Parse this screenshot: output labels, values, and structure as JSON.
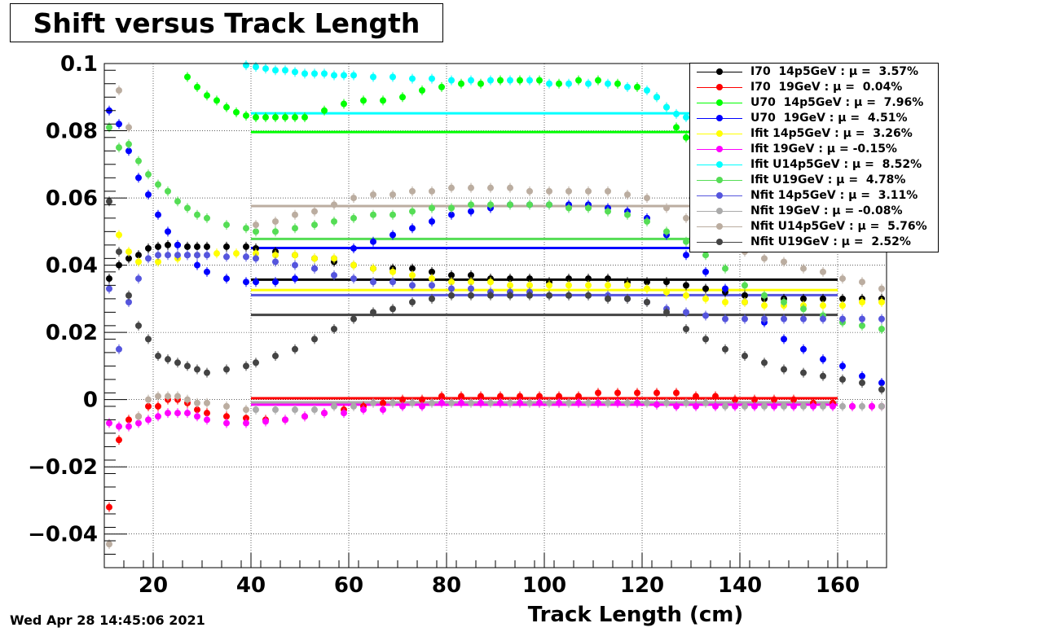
{
  "title": "Shift versus Track Length",
  "date": "Wed Apr 28 14:45:06 2021",
  "chart_data": {
    "type": "scatter",
    "title": "Shift versus Track Length",
    "xlabel": "Track Length (cm)",
    "ylabel": "",
    "xlim": [
      10,
      170
    ],
    "ylim": [
      -0.05,
      0.1
    ],
    "grid": true,
    "legend_position": "top-right",
    "x_ticks": [
      20,
      40,
      60,
      80,
      100,
      120,
      140,
      160
    ],
    "x_tick_labels": [
      "20",
      "40",
      "60",
      "80",
      "100",
      "120",
      "140",
      "160"
    ],
    "y_ticks": [
      -0.04,
      -0.02,
      0,
      0.02,
      0.04,
      0.06,
      0.08,
      0.1
    ],
    "y_tick_labels": [
      "−0.04",
      "−0.02",
      "0",
      "0.02",
      "0.04",
      "0.06",
      "0.08",
      "0.1"
    ],
    "series": [
      {
        "name": "I70  14p5GeV : μ =  3.57%",
        "color": "#000000",
        "mean": 0.0357,
        "x": [
          11,
          13,
          15,
          17,
          19,
          21,
          23,
          25,
          27,
          29,
          31,
          35,
          39,
          41,
          45,
          49,
          53,
          57,
          61,
          65,
          69,
          73,
          77,
          81,
          85,
          89,
          93,
          97,
          101,
          105,
          109,
          113,
          117,
          121,
          125,
          129,
          133,
          137,
          141,
          145,
          149,
          153,
          157,
          161,
          165,
          169
        ],
        "y": [
          0.036,
          0.04,
          0.042,
          0.043,
          0.045,
          0.0455,
          0.046,
          0.046,
          0.0455,
          0.0455,
          0.0455,
          0.0455,
          0.0455,
          0.045,
          0.044,
          0.043,
          0.042,
          0.041,
          0.04,
          0.039,
          0.039,
          0.039,
          0.038,
          0.037,
          0.037,
          0.036,
          0.036,
          0.036,
          0.035,
          0.036,
          0.036,
          0.036,
          0.035,
          0.035,
          0.035,
          0.034,
          0.033,
          0.032,
          0.031,
          0.03,
          0.03,
          0.03,
          0.03,
          0.03,
          0.03,
          0.03
        ]
      },
      {
        "name": "I70  19GeV : μ =  0.04%",
        "color": "#ff0000",
        "mean": 0.0004,
        "x": [
          11,
          13,
          15,
          17,
          19,
          21,
          23,
          25,
          27,
          29,
          31,
          35,
          39,
          43,
          47,
          51,
          55,
          59,
          63,
          67,
          71,
          75,
          79,
          83,
          87,
          91,
          95,
          99,
          103,
          107,
          111,
          115,
          119,
          123,
          127,
          131,
          135,
          139,
          143,
          147,
          151,
          155,
          159,
          163,
          167,
          169
        ],
        "y": [
          -0.032,
          -0.012,
          -0.006,
          -0.005,
          -0.002,
          -0.002,
          0.0,
          0.0,
          -0.001,
          -0.003,
          -0.004,
          -0.005,
          -0.0055,
          -0.006,
          -0.006,
          -0.005,
          -0.004,
          -0.003,
          -0.002,
          -0.001,
          0.0,
          0.0,
          0.001,
          0.001,
          0.001,
          0.001,
          0.001,
          0.001,
          0.001,
          0.001,
          0.002,
          0.002,
          0.002,
          0.002,
          0.002,
          0.001,
          0.001,
          0.0,
          0.0,
          0.0,
          0.0,
          -0.001,
          -0.001,
          -0.002,
          -0.002,
          -0.002
        ]
      },
      {
        "name": "U70  14p5GeV : μ =  7.96%",
        "color": "#00ff00",
        "mean": 0.0796,
        "x": [
          27,
          29,
          31,
          33,
          35,
          37,
          39,
          41,
          43,
          45,
          47,
          49,
          51,
          55,
          59,
          63,
          67,
          71,
          75,
          79,
          83,
          87,
          91,
          95,
          99,
          103,
          107,
          111,
          115,
          119,
          123,
          125,
          127,
          129,
          131,
          133,
          135
        ],
        "y": [
          0.096,
          0.093,
          0.0905,
          0.089,
          0.087,
          0.0855,
          0.0845,
          0.084,
          0.084,
          0.084,
          0.084,
          0.084,
          0.084,
          0.086,
          0.088,
          0.089,
          0.089,
          0.09,
          0.092,
          0.093,
          0.094,
          0.094,
          0.095,
          0.095,
          0.095,
          0.094,
          0.095,
          0.095,
          0.094,
          0.093,
          0.09,
          0.087,
          0.081,
          0.078,
          0.077,
          0.076,
          0.075
        ]
      },
      {
        "name": "U70  19GeV : μ =  4.51%",
        "color": "#0000ff",
        "mean": 0.0451,
        "x": [
          11,
          13,
          15,
          17,
          19,
          21,
          23,
          25,
          27,
          29,
          31,
          35,
          39,
          41,
          45,
          49,
          53,
          57,
          61,
          65,
          69,
          73,
          77,
          81,
          85,
          89,
          93,
          97,
          101,
          105,
          109,
          113,
          117,
          121,
          125,
          129,
          133,
          137,
          141,
          145,
          149,
          153,
          157,
          161,
          165,
          169
        ],
        "y": [
          0.086,
          0.082,
          0.074,
          0.066,
          0.061,
          0.055,
          0.05,
          0.046,
          0.043,
          0.04,
          0.038,
          0.036,
          0.035,
          0.035,
          0.035,
          0.036,
          0.039,
          0.042,
          0.045,
          0.047,
          0.049,
          0.051,
          0.053,
          0.055,
          0.056,
          0.057,
          0.058,
          0.058,
          0.058,
          0.058,
          0.058,
          0.057,
          0.056,
          0.054,
          0.049,
          0.043,
          0.038,
          0.033,
          0.029,
          0.023,
          0.018,
          0.015,
          0.012,
          0.01,
          0.007,
          0.005
        ]
      },
      {
        "name": "Ifit 14p5GeV : μ =  3.26%",
        "color": "#ffff00",
        "mean": 0.0326,
        "x": [
          13,
          15,
          17,
          21,
          25,
          29,
          33,
          37,
          41,
          45,
          49,
          53,
          57,
          61,
          65,
          69,
          73,
          77,
          81,
          85,
          89,
          93,
          97,
          101,
          105,
          109,
          113,
          117,
          121,
          125,
          129,
          133,
          137,
          141,
          145,
          149,
          153,
          157,
          161,
          165,
          169
        ],
        "y": [
          0.049,
          0.044,
          0.041,
          0.041,
          0.042,
          0.043,
          0.0435,
          0.0435,
          0.0435,
          0.043,
          0.043,
          0.042,
          0.042,
          0.04,
          0.039,
          0.038,
          0.037,
          0.036,
          0.035,
          0.035,
          0.035,
          0.034,
          0.034,
          0.034,
          0.034,
          0.034,
          0.034,
          0.034,
          0.033,
          0.032,
          0.031,
          0.03,
          0.029,
          0.029,
          0.028,
          0.028,
          0.028,
          0.028,
          0.028,
          0.029,
          0.029
        ]
      },
      {
        "name": "Ifit 19GeV : μ = -0.15%",
        "color": "#ff00ff",
        "mean": -0.0015,
        "x": [
          11,
          13,
          15,
          17,
          19,
          21,
          23,
          25,
          27,
          29,
          31,
          35,
          39,
          43,
          47,
          51,
          55,
          59,
          63,
          67,
          71,
          75,
          79,
          83,
          87,
          91,
          95,
          99,
          103,
          107,
          111,
          115,
          119,
          123,
          127,
          131,
          135,
          139,
          143,
          147,
          151,
          155,
          159,
          163,
          167,
          169
        ],
        "y": [
          -0.007,
          -0.008,
          -0.008,
          -0.007,
          -0.006,
          -0.005,
          -0.004,
          -0.004,
          -0.004,
          -0.005,
          -0.006,
          -0.007,
          -0.007,
          -0.0065,
          -0.006,
          -0.005,
          -0.004,
          -0.004,
          -0.003,
          -0.003,
          -0.002,
          -0.002,
          -0.001,
          -0.001,
          -0.001,
          -0.001,
          -0.001,
          -0.001,
          -0.001,
          -0.001,
          -0.001,
          -0.001,
          -0.001,
          -0.0015,
          -0.002,
          -0.002,
          -0.002,
          -0.002,
          -0.002,
          -0.002,
          -0.002,
          -0.002,
          -0.002,
          -0.002,
          -0.002,
          -0.002
        ]
      },
      {
        "name": "Ifit U14p5GeV : μ =  8.52%",
        "color": "#00ffff",
        "mean": 0.0852,
        "x": [
          39,
          41,
          43,
          45,
          47,
          49,
          51,
          53,
          55,
          57,
          59,
          61,
          65,
          69,
          73,
          77,
          81,
          85,
          89,
          93,
          97,
          101,
          105,
          109,
          113,
          117,
          121,
          123,
          125,
          127,
          129,
          131
        ],
        "y": [
          0.0995,
          0.099,
          0.0985,
          0.098,
          0.098,
          0.0975,
          0.097,
          0.097,
          0.097,
          0.0965,
          0.0965,
          0.0965,
          0.096,
          0.096,
          0.0955,
          0.0955,
          0.095,
          0.095,
          0.095,
          0.095,
          0.095,
          0.094,
          0.094,
          0.094,
          0.094,
          0.093,
          0.092,
          0.09,
          0.087,
          0.085,
          0.084,
          0.084
        ]
      },
      {
        "name": "Ifit U19GeV : μ =  4.78%",
        "color": "#55dd55",
        "mean": 0.0478,
        "x": [
          11,
          13,
          15,
          17,
          19,
          21,
          23,
          25,
          27,
          29,
          31,
          35,
          39,
          41,
          45,
          49,
          53,
          57,
          61,
          65,
          69,
          73,
          77,
          81,
          85,
          89,
          93,
          97,
          101,
          105,
          109,
          113,
          117,
          121,
          125,
          129,
          133,
          137,
          141,
          145,
          149,
          153,
          157,
          161,
          165,
          169
        ],
        "y": [
          0.081,
          0.075,
          0.076,
          0.071,
          0.067,
          0.064,
          0.062,
          0.059,
          0.057,
          0.055,
          0.054,
          0.052,
          0.051,
          0.05,
          0.05,
          0.051,
          0.052,
          0.053,
          0.054,
          0.055,
          0.055,
          0.056,
          0.057,
          0.057,
          0.058,
          0.058,
          0.058,
          0.058,
          0.058,
          0.057,
          0.057,
          0.056,
          0.055,
          0.053,
          0.05,
          0.047,
          0.043,
          0.039,
          0.034,
          0.031,
          0.029,
          0.027,
          0.025,
          0.023,
          0.022,
          0.021
        ]
      },
      {
        "name": "Nfit 14p5GeV : μ =  3.11%",
        "color": "#5555dd",
        "mean": 0.0311,
        "x": [
          11,
          13,
          15,
          17,
          19,
          21,
          23,
          25,
          27,
          29,
          31,
          35,
          39,
          41,
          45,
          49,
          53,
          57,
          61,
          65,
          69,
          73,
          77,
          81,
          85,
          89,
          93,
          97,
          101,
          105,
          109,
          113,
          117,
          121,
          125,
          129,
          133,
          137,
          141,
          145,
          149,
          153,
          157,
          161,
          165,
          169
        ],
        "y": [
          0.033,
          0.015,
          0.029,
          0.036,
          0.042,
          0.043,
          0.043,
          0.043,
          0.043,
          0.043,
          0.043,
          0.0425,
          0.0425,
          0.042,
          0.041,
          0.04,
          0.039,
          0.037,
          0.036,
          0.035,
          0.035,
          0.034,
          0.034,
          0.033,
          0.033,
          0.032,
          0.032,
          0.032,
          0.031,
          0.031,
          0.031,
          0.031,
          0.03,
          0.029,
          0.027,
          0.026,
          0.025,
          0.024,
          0.024,
          0.024,
          0.024,
          0.024,
          0.024,
          0.024,
          0.024,
          0.024
        ]
      },
      {
        "name": "Nfit 19GeV : μ = -0.08%",
        "color": "#aaaaaa",
        "mean": -0.0008,
        "x": [
          41,
          45,
          49,
          53,
          57,
          61,
          65,
          69,
          73,
          77,
          81,
          85,
          89,
          93,
          97,
          101,
          105,
          109,
          113,
          117,
          121,
          125,
          129,
          133,
          137,
          141,
          145,
          149,
          153,
          157,
          161,
          165,
          169
        ],
        "y": [
          -0.003,
          -0.003,
          -0.003,
          -0.003,
          -0.002,
          -0.002,
          -0.001,
          -0.001,
          -0.001,
          -0.001,
          -0.001,
          -0.001,
          -0.001,
          -0.001,
          -0.001,
          -0.001,
          -0.001,
          -0.001,
          -0.001,
          -0.001,
          -0.001,
          -0.001,
          -0.001,
          -0.001,
          -0.002,
          -0.002,
          -0.002,
          -0.002,
          -0.002,
          -0.002,
          -0.002,
          -0.002,
          -0.002
        ]
      },
      {
        "name": "Nfit U14p5GeV : μ =  5.76%",
        "color": "#bbada0",
        "mean": 0.0576,
        "x": [
          11,
          13,
          15,
          17,
          19,
          21,
          23,
          25,
          27,
          29,
          31,
          35,
          39,
          41,
          45,
          49,
          53,
          57,
          61,
          65,
          69,
          73,
          77,
          81,
          85,
          89,
          93,
          97,
          101,
          105,
          109,
          113,
          117,
          121,
          125,
          129,
          133,
          137,
          141,
          145,
          149,
          153,
          157,
          161,
          165,
          169
        ],
        "y": [
          -0.043,
          0.092,
          0.081,
          -0.005,
          0.0,
          0.001,
          0.001,
          0.001,
          0.0,
          -0.001,
          -0.001,
          -0.002,
          -0.003,
          0.052,
          0.053,
          0.055,
          0.056,
          0.058,
          0.06,
          0.061,
          0.061,
          0.062,
          0.062,
          0.063,
          0.063,
          0.063,
          0.063,
          0.062,
          0.062,
          0.062,
          0.062,
          0.062,
          0.061,
          0.06,
          0.057,
          0.054,
          0.05,
          0.047,
          0.044,
          0.042,
          0.041,
          0.039,
          0.038,
          0.036,
          0.035,
          0.033
        ]
      },
      {
        "name": "Nfit U19GeV : μ =  2.52%",
        "color": "#444444",
        "mean": 0.0252,
        "x": [
          11,
          13,
          15,
          17,
          19,
          21,
          23,
          25,
          27,
          29,
          31,
          35,
          39,
          41,
          45,
          49,
          53,
          57,
          61,
          65,
          69,
          73,
          77,
          81,
          85,
          89,
          93,
          97,
          101,
          105,
          109,
          113,
          117,
          121,
          125,
          129,
          133,
          137,
          141,
          145,
          149,
          153,
          157,
          161,
          165,
          169
        ],
        "y": [
          0.059,
          0.044,
          0.031,
          0.022,
          0.018,
          0.013,
          0.012,
          0.011,
          0.01,
          0.009,
          0.008,
          0.009,
          0.01,
          0.011,
          0.013,
          0.015,
          0.018,
          0.021,
          0.024,
          0.026,
          0.027,
          0.029,
          0.03,
          0.031,
          0.031,
          0.031,
          0.031,
          0.031,
          0.031,
          0.031,
          0.031,
          0.03,
          0.03,
          0.029,
          0.026,
          0.021,
          0.018,
          0.015,
          0.013,
          0.011,
          0.009,
          0.008,
          0.007,
          0.006,
          0.005,
          0.003
        ]
      }
    ],
    "mean_lines": {
      "x_start": 40,
      "x_end": 160
    }
  }
}
